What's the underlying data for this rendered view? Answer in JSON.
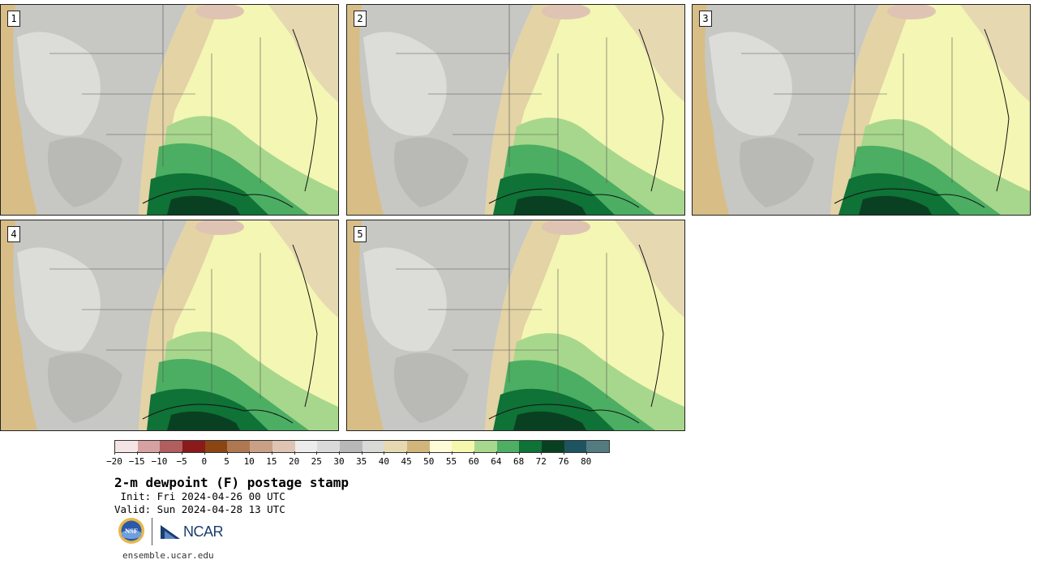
{
  "panels": [
    {
      "label": "1"
    },
    {
      "label": "2"
    },
    {
      "label": "3"
    },
    {
      "label": "4"
    },
    {
      "label": "5"
    }
  ],
  "colorbar": {
    "colors": [
      "#f5e4e4",
      "#d6a1a1",
      "#b15e5e",
      "#8b1a1a",
      "#8b4513",
      "#b07850",
      "#c9a085",
      "#dfc4b3",
      "#ececec",
      "#dadada",
      "#b8b8b8",
      "#d9d9d6",
      "#e6d9b1",
      "#d1b57a",
      "#fdfbd8",
      "#f5f7ad",
      "#a8d88d",
      "#4eae63",
      "#0f7236",
      "#0a4022",
      "#1e5360",
      "#537c80"
    ],
    "tick_labels": [
      "−20",
      "−15",
      "−10",
      "−5",
      "0",
      "5",
      "10",
      "15",
      "20",
      "25",
      "30",
      "35",
      "40",
      "45",
      "50",
      "55",
      "60",
      "64",
      "68",
      "72",
      "76",
      "80"
    ]
  },
  "title": "2-m dewpoint (F) postage stamp",
  "init_line": " Init: Fri 2024-04-26 00 UTC",
  "valid_line": "Valid: Sun 2024-04-28 13 UTC",
  "logos": {
    "nsf": "NSF",
    "ncar": "NCAR"
  },
  "footer_url": "ensemble.ucar.edu"
}
